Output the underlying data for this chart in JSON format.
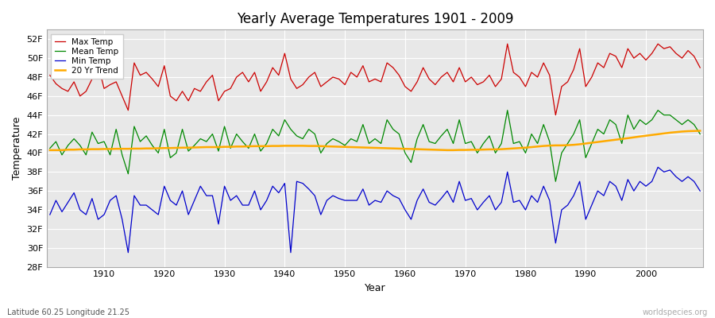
{
  "title": "Yearly Average Temperatures 1901 - 2009",
  "xlabel": "Year",
  "ylabel": "Temperature",
  "footer_left": "Latitude 60.25 Longitude 21.25",
  "footer_right": "worldspecies.org",
  "legend_labels": [
    "Max Temp",
    "Mean Temp",
    "Min Temp",
    "20 Yr Trend"
  ],
  "line_colors": [
    "#cc0000",
    "#008800",
    "#0000cc",
    "#ffaa00"
  ],
  "bg_color": "#f0f0f0",
  "plot_bg_color": "#e8e8e8",
  "ylim": [
    28,
    53
  ],
  "yticks": [
    28,
    30,
    32,
    34,
    36,
    38,
    40,
    42,
    44,
    46,
    48,
    50,
    52
  ],
  "years": [
    1901,
    1902,
    1903,
    1904,
    1905,
    1906,
    1907,
    1908,
    1909,
    1910,
    1911,
    1912,
    1913,
    1914,
    1915,
    1916,
    1917,
    1918,
    1919,
    1920,
    1921,
    1922,
    1923,
    1924,
    1925,
    1926,
    1927,
    1928,
    1929,
    1930,
    1931,
    1932,
    1933,
    1934,
    1935,
    1936,
    1937,
    1938,
    1939,
    1940,
    1941,
    1942,
    1943,
    1944,
    1945,
    1946,
    1947,
    1948,
    1949,
    1950,
    1951,
    1952,
    1953,
    1954,
    1955,
    1956,
    1957,
    1958,
    1959,
    1960,
    1961,
    1962,
    1963,
    1964,
    1965,
    1966,
    1967,
    1968,
    1969,
    1970,
    1971,
    1972,
    1973,
    1974,
    1975,
    1976,
    1977,
    1978,
    1979,
    1980,
    1981,
    1982,
    1983,
    1984,
    1985,
    1986,
    1987,
    1988,
    1989,
    1990,
    1991,
    1992,
    1993,
    1994,
    1995,
    1996,
    1997,
    1998,
    1999,
    2000,
    2001,
    2002,
    2003,
    2004,
    2005,
    2006,
    2007,
    2008,
    2009
  ],
  "max_temp": [
    48.2,
    47.3,
    46.8,
    46.5,
    47.5,
    46.0,
    46.5,
    47.8,
    49.3,
    46.8,
    47.2,
    47.5,
    46.0,
    44.5,
    49.5,
    48.2,
    48.5,
    47.8,
    47.0,
    49.2,
    46.0,
    45.5,
    46.5,
    45.5,
    46.8,
    46.5,
    47.5,
    48.2,
    45.5,
    46.5,
    46.8,
    48.0,
    48.5,
    47.5,
    48.5,
    46.5,
    47.5,
    49.0,
    48.2,
    50.5,
    47.8,
    46.8,
    47.2,
    48.0,
    48.5,
    47.0,
    47.5,
    48.0,
    47.8,
    47.2,
    48.5,
    48.0,
    49.2,
    47.5,
    47.8,
    47.5,
    49.5,
    49.0,
    48.2,
    47.0,
    46.5,
    47.5,
    49.0,
    47.8,
    47.2,
    48.0,
    48.5,
    47.5,
    49.0,
    47.5,
    48.0,
    47.2,
    47.5,
    48.2,
    47.0,
    47.8,
    51.5,
    48.5,
    48.0,
    47.0,
    48.5,
    48.0,
    49.5,
    48.2,
    44.0,
    47.0,
    47.5,
    48.8,
    51.0,
    47.0,
    48.0,
    49.5,
    49.0,
    50.5,
    50.2,
    49.0,
    51.0,
    50.0,
    50.5,
    49.8,
    50.5,
    51.5,
    51.0,
    51.2,
    50.5,
    50.0,
    50.8,
    50.2,
    49.0
  ],
  "mean_temp": [
    40.5,
    41.2,
    39.8,
    40.8,
    41.5,
    40.8,
    39.8,
    42.2,
    41.0,
    41.2,
    39.8,
    42.5,
    39.8,
    37.8,
    42.8,
    41.2,
    41.8,
    40.8,
    40.0,
    42.5,
    39.5,
    40.0,
    42.5,
    40.2,
    40.8,
    41.5,
    41.2,
    42.0,
    40.2,
    42.8,
    40.5,
    42.0,
    41.2,
    40.5,
    42.0,
    40.2,
    41.0,
    42.5,
    41.8,
    43.5,
    42.5,
    41.8,
    41.5,
    42.5,
    42.0,
    40.0,
    41.0,
    41.5,
    41.2,
    40.8,
    41.5,
    41.2,
    43.0,
    41.0,
    41.5,
    41.0,
    43.5,
    42.5,
    42.0,
    40.0,
    39.0,
    41.5,
    43.0,
    41.2,
    41.0,
    41.8,
    42.5,
    41.0,
    43.5,
    41.0,
    41.2,
    40.0,
    41.0,
    41.8,
    40.0,
    41.0,
    44.5,
    41.0,
    41.2,
    40.0,
    42.0,
    41.0,
    43.0,
    41.2,
    37.0,
    40.0,
    41.0,
    42.0,
    43.5,
    39.5,
    41.0,
    42.5,
    42.0,
    43.5,
    43.0,
    41.0,
    44.0,
    42.5,
    43.5,
    43.0,
    43.5,
    44.5,
    44.0,
    44.0,
    43.5,
    43.0,
    43.5,
    43.0,
    42.0
  ],
  "min_temp": [
    33.5,
    35.0,
    33.8,
    34.8,
    35.8,
    34.0,
    33.5,
    35.2,
    33.0,
    33.5,
    35.0,
    35.5,
    33.0,
    29.5,
    35.5,
    34.5,
    34.5,
    34.0,
    33.5,
    36.5,
    35.0,
    34.5,
    36.0,
    33.5,
    35.0,
    36.5,
    35.5,
    35.5,
    32.5,
    36.5,
    35.0,
    35.5,
    34.5,
    34.5,
    36.0,
    34.0,
    35.0,
    36.5,
    35.8,
    36.8,
    29.5,
    37.0,
    36.8,
    36.2,
    35.5,
    33.5,
    35.0,
    35.5,
    35.2,
    35.0,
    35.0,
    35.0,
    36.2,
    34.5,
    35.0,
    34.8,
    36.0,
    35.5,
    35.2,
    34.0,
    33.0,
    35.0,
    36.2,
    34.8,
    34.5,
    35.2,
    36.0,
    34.8,
    37.0,
    35.0,
    35.2,
    34.0,
    34.8,
    35.5,
    34.0,
    34.8,
    38.0,
    34.8,
    35.0,
    34.0,
    35.5,
    34.8,
    36.5,
    35.0,
    30.5,
    34.0,
    34.5,
    35.5,
    37.0,
    33.0,
    34.5,
    36.0,
    35.5,
    37.0,
    36.5,
    35.0,
    37.2,
    36.0,
    37.0,
    36.5,
    37.0,
    38.5,
    38.0,
    38.2,
    37.5,
    37.0,
    37.5,
    37.0,
    36.0
  ],
  "trend": [
    40.3,
    40.3,
    40.3,
    40.35,
    40.35,
    40.38,
    40.38,
    40.4,
    40.4,
    40.42,
    40.42,
    40.44,
    40.44,
    40.44,
    40.46,
    40.46,
    40.48,
    40.48,
    40.5,
    40.52,
    40.52,
    40.54,
    40.56,
    40.56,
    40.58,
    40.6,
    40.62,
    40.62,
    40.62,
    40.65,
    40.65,
    40.68,
    40.68,
    40.7,
    40.72,
    40.72,
    40.72,
    40.74,
    40.74,
    40.76,
    40.76,
    40.76,
    40.76,
    40.74,
    40.74,
    40.72,
    40.7,
    40.68,
    40.66,
    40.64,
    40.62,
    40.6,
    40.58,
    40.56,
    40.54,
    40.52,
    40.5,
    40.48,
    40.46,
    40.44,
    40.42,
    40.4,
    40.38,
    40.36,
    40.34,
    40.32,
    40.3,
    40.3,
    40.32,
    40.32,
    40.34,
    40.34,
    40.36,
    40.38,
    40.38,
    40.4,
    40.44,
    40.48,
    40.52,
    40.56,
    40.62,
    40.68,
    40.74,
    40.78,
    40.8,
    40.8,
    40.82,
    40.86,
    40.92,
    41.0,
    41.08,
    41.16,
    41.24,
    41.32,
    41.4,
    41.48,
    41.56,
    41.65,
    41.74,
    41.82,
    41.9,
    41.98,
    42.06,
    42.14,
    42.2,
    42.26,
    42.3,
    42.32,
    42.34
  ]
}
